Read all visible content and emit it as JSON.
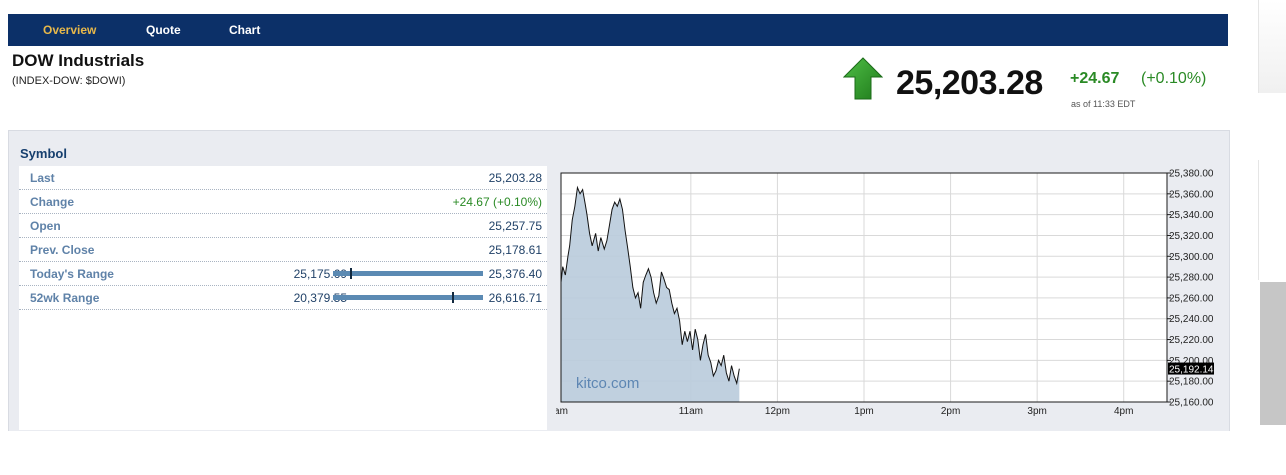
{
  "nav": {
    "tabs": [
      "Overview",
      "Quote",
      "Chart"
    ],
    "active": 0
  },
  "header": {
    "title": "DOW Industrials",
    "subtitle": "(INDEX-DOW: $DOWI)",
    "price": "25,203.28",
    "change": "+24.67",
    "change_pct": "(+0.10%)",
    "as_of": "as of 11:33 EDT",
    "up_color": "#2a8a25",
    "arrow_icon": "up-arrow-icon"
  },
  "table": {
    "heading": "Symbol",
    "rows": [
      {
        "label": "Last",
        "value": "25,203.28"
      },
      {
        "label": "Change",
        "value": "+24.67 (+0.10%)"
      },
      {
        "label": "Open",
        "value": "25,257.75"
      },
      {
        "label": "Prev. Close",
        "value": "25,178.61"
      },
      {
        "label": "Today's Range",
        "low": "25,175.69",
        "high": "25,376.40",
        "position": 0.12
      },
      {
        "label": "52wk Range",
        "low": "20,379.55",
        "high": "26,616.71",
        "position": 0.8
      }
    ]
  },
  "chart_data": {
    "type": "area",
    "watermark": "kitco.com",
    "last_label": "25,192.14",
    "last_value": 25192.14,
    "ylim": [
      25160,
      25380
    ],
    "y_ticks": [
      25160,
      25180,
      25200,
      25220,
      25240,
      25260,
      25280,
      25300,
      25320,
      25340,
      25360,
      25380
    ],
    "y_tick_labels": [
      "25,160.00",
      "25,180.00",
      "25,200.00",
      "25,220.00",
      "25,240.00",
      "25,260.00",
      "25,280.00",
      "25,300.00",
      "25,320.00",
      "25,340.00",
      "25,360.00",
      "25,380.00"
    ],
    "xlim": [
      9.5,
      16.5
    ],
    "x_ticks": [
      9.5,
      11,
      12,
      13,
      14,
      15,
      16
    ],
    "x_tick_labels": [
      "am",
      "11am",
      "12pm",
      "1pm",
      "2pm",
      "3pm",
      "4pm"
    ],
    "grid": true,
    "series": [
      {
        "x": [
          9.5,
          9.52,
          9.55,
          9.58,
          9.6,
          9.63,
          9.66,
          9.69,
          9.72,
          9.75,
          9.78,
          9.8,
          9.83,
          9.86,
          9.9,
          9.93,
          9.96,
          10.0,
          10.03,
          10.06,
          10.09,
          10.12,
          10.15,
          10.18,
          10.21,
          10.24,
          10.27,
          10.3,
          10.33,
          10.36,
          10.39,
          10.42,
          10.45,
          10.48,
          10.51,
          10.54,
          10.57,
          10.6,
          10.63,
          10.66,
          10.69,
          10.72,
          10.75,
          10.78,
          10.81,
          10.84,
          10.87,
          10.9,
          10.93,
          10.96,
          10.99,
          11.02,
          11.05,
          11.08,
          11.11,
          11.14,
          11.17,
          11.2,
          11.23,
          11.26,
          11.29,
          11.32,
          11.35,
          11.38,
          11.41,
          11.44,
          11.47,
          11.5,
          11.53,
          11.56
        ],
        "values": [
          25275,
          25290,
          25282,
          25300,
          25310,
          25335,
          25348,
          25366,
          25360,
          25364,
          25350,
          25340,
          25322,
          25310,
          25322,
          25305,
          25318,
          25307,
          25315,
          25330,
          25345,
          25352,
          25348,
          25355,
          25345,
          25325,
          25308,
          25290,
          25270,
          25260,
          25265,
          25250,
          25275,
          25282,
          25288,
          25280,
          25265,
          25255,
          25262,
          25285,
          25278,
          25270,
          25268,
          25255,
          25245,
          25250,
          25238,
          25215,
          25228,
          25218,
          25228,
          25210,
          25230,
          25220,
          25200,
          25215,
          25225,
          25205,
          25198,
          25185,
          25190,
          25200,
          25195,
          25205,
          25188,
          25180,
          25195,
          25185,
          25178,
          25192
        ]
      }
    ]
  }
}
